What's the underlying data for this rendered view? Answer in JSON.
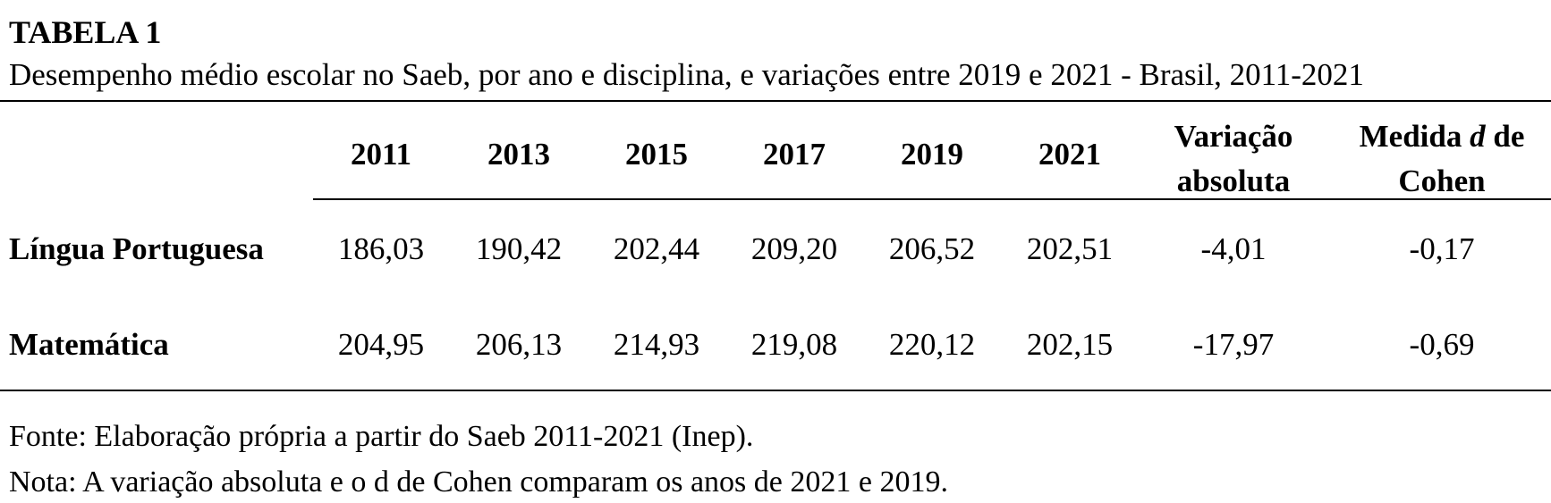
{
  "table": {
    "title": "TABELA 1",
    "subtitle": "Desempenho médio escolar no Saeb, por ano e disciplina, e variações entre 2019 e 2021 - Brasil, 2011-2021",
    "columns": [
      "2011",
      "2013",
      "2015",
      "2017",
      "2019",
      "2021"
    ],
    "variation_header": {
      "line1": "Variação",
      "line2": "absoluta"
    },
    "cohen_header": {
      "line1_a": "Medida ",
      "line1_d": "d",
      "line1_b": " de",
      "line2": "Cohen"
    },
    "rows": [
      {
        "label": "Língua Portuguesa",
        "values": [
          "186,03",
          "190,42",
          "202,44",
          "209,20",
          "206,52",
          "202,51"
        ],
        "variation": "-4,01",
        "cohen": "-0,17"
      },
      {
        "label": "Matemática",
        "values": [
          "204,95",
          "206,13",
          "214,93",
          "219,08",
          "220,12",
          "202,15"
        ],
        "variation": "-17,97",
        "cohen": "-0,69"
      }
    ]
  },
  "footer": {
    "source": "Fonte: Elaboração própria a partir do Saeb 2011-2021 (Inep).",
    "note": "Nota: A variação absoluta e o d de Cohen comparam os anos de 2021 e 2019."
  }
}
